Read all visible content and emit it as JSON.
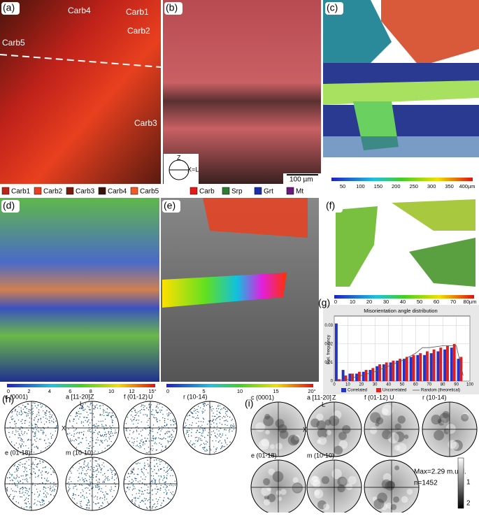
{
  "panels": {
    "a": {
      "label": "(a)",
      "annotations": [
        "Carb4",
        "Carb1",
        "Carb2",
        "Carb5",
        "Carb3"
      ],
      "legend": [
        {
          "name": "Carb1",
          "color": "#c0221a"
        },
        {
          "name": "Carb2",
          "color": "#e8401f"
        },
        {
          "name": "Carb3",
          "color": "#7a1c10"
        },
        {
          "name": "Carb4",
          "color": "#3a120c"
        },
        {
          "name": "Carb5",
          "color": "#f05a28"
        }
      ]
    },
    "b": {
      "label": "(b)",
      "scale_bar": "100 µm",
      "axes": [
        "Z",
        "X=L"
      ],
      "legend": [
        {
          "name": "Carb",
          "color": "#e81818"
        },
        {
          "name": "Srp",
          "color": "#2e7d32"
        },
        {
          "name": "Grt",
          "color": "#1a2fa8"
        },
        {
          "name": "Mt",
          "color": "#6a1b7a"
        }
      ]
    },
    "c": {
      "label": "(c)",
      "colorbar_ticks": [
        "50",
        "100",
        "150",
        "200",
        "250",
        "300",
        "350",
        "400µm"
      ]
    },
    "d": {
      "label": "(d)",
      "colorbar_ticks": [
        "0",
        "2",
        "4",
        "6",
        "8",
        "10",
        "12",
        "15°"
      ]
    },
    "e": {
      "label": "(e)",
      "colorbar_ticks": [
        "0",
        "5",
        "10",
        "15",
        "20°"
      ]
    },
    "f": {
      "label": "(f)",
      "colorbar_ticks": [
        "0",
        "10",
        "20",
        "30",
        "40",
        "50",
        "60",
        "70",
        "80µm"
      ]
    },
    "h": {
      "label": "(h)",
      "poles": [
        "c (0001)",
        "a [11-20]",
        "f (01-12)",
        "r (10-14)",
        "e (01-18)",
        "m (10-10)"
      ],
      "axes": [
        "Z",
        "L",
        "U",
        "X"
      ]
    },
    "i": {
      "label": "(i)",
      "poles": [
        "c (0001)",
        "a [11-20]",
        "f (01-12)",
        "r (10-14)",
        "e (01-18)",
        "m (10-10)"
      ],
      "axes": [
        "Z",
        "L",
        "U",
        "X"
      ],
      "max": "Max=2.29 m.u.d.",
      "n": "n=1452",
      "colorbar_ticks": [
        "1",
        "2"
      ]
    }
  },
  "chart_data": {
    "type": "histogram",
    "label": "(g)",
    "title": "Misorientation angle distribution",
    "y_label": "Rel. frequency",
    "bins": [
      0,
      5,
      10,
      15,
      20,
      25,
      30,
      35,
      40,
      45,
      50,
      55,
      60,
      65,
      70,
      75,
      80,
      85,
      90,
      95
    ],
    "series": [
      {
        "name": "Correlated",
        "color": "#2233cc",
        "values": [
          0.031,
          0.006,
          0.004,
          0.004,
          0.005,
          0.006,
          0.008,
          0.009,
          0.01,
          0.011,
          0.012,
          0.013,
          0.014,
          0.014,
          0.015,
          0.016,
          0.017,
          0.018,
          0.012
        ]
      },
      {
        "name": "Uncorrelated",
        "color": "#e02020",
        "values": [
          0.001,
          0.003,
          0.004,
          0.005,
          0.006,
          0.007,
          0.009,
          0.01,
          0.011,
          0.012,
          0.013,
          0.014,
          0.015,
          0.016,
          0.017,
          0.018,
          0.019,
          0.02,
          0.013
        ]
      }
    ],
    "line": {
      "name": "Random (theoretical)",
      "color": "#555555",
      "x": [
        0,
        10,
        20,
        30,
        40,
        50,
        60,
        65,
        70,
        80,
        90,
        95
      ],
      "values": [
        0,
        0.001,
        0.003,
        0.005,
        0.008,
        0.011,
        0.015,
        0.018,
        0.018,
        0.019,
        0.019,
        0.003
      ]
    },
    "xlim": [
      0,
      100
    ],
    "xticks": [
      0,
      10,
      20,
      30,
      40,
      50,
      60,
      70,
      80,
      90,
      100
    ],
    "ylim": [
      0,
      0.035
    ],
    "yticks": [
      0,
      0.01,
      0.02,
      0.03
    ],
    "grid": true
  }
}
